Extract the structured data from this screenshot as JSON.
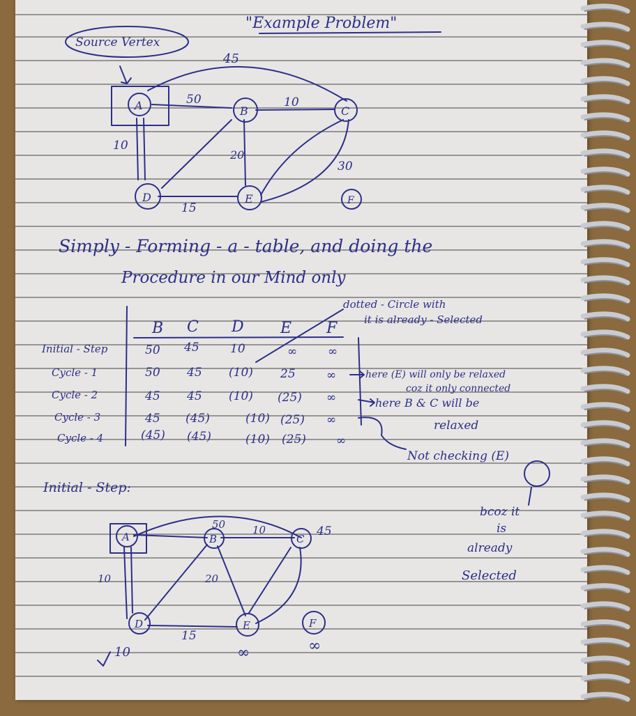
{
  "header": {
    "source_vertex_label": "Source Vertex",
    "title": "\"Example Problem\""
  },
  "graph1": {
    "nodes": [
      "A",
      "B",
      "C",
      "D",
      "E",
      "F"
    ],
    "edge_labels": {
      "ac": "45",
      "ab": "50",
      "bc": "10",
      "ad": "10",
      "be": "20",
      "ce": "30",
      "de": "15"
    }
  },
  "note": {
    "line1": "Simply - Forming - a - table, and doing the",
    "line2": "Procedure in our Mind only"
  },
  "annotation_dotted": {
    "line1": "dotted - Circle with",
    "line2": "it is already - Selected"
  },
  "table": {
    "columns": [
      "B",
      "C",
      "D",
      "E",
      "F"
    ],
    "rows": [
      {
        "label": "Initial - Step",
        "values": [
          "50",
          "45",
          "10",
          "∞",
          "∞"
        ]
      },
      {
        "label": "Cycle - 1",
        "values": [
          "50",
          "45",
          "(10)",
          "25",
          "∞"
        ]
      },
      {
        "label": "Cycle - 2",
        "values": [
          "45",
          "45",
          "(10)",
          "(25)",
          "∞"
        ]
      },
      {
        "label": "Cycle - 3",
        "values": [
          "45",
          "(45)",
          "(10)",
          "(25)",
          "∞"
        ]
      },
      {
        "label": "Cycle - 4",
        "values": [
          "(45)",
          "(45)",
          "(10)",
          "(25)",
          "∞"
        ]
      }
    ]
  },
  "side_notes": {
    "relax_e_1": "here (E) will only be relaxed",
    "relax_e_2": "coz it only connected",
    "relax_bc_1": "here B & C will be",
    "relax_bc_2": "relaxed",
    "not_checking": "Not checking (E)",
    "becoz_1": "bcoz it",
    "becoz_2": "is",
    "becoz_3": "already",
    "becoz_4": "Selected"
  },
  "initial_step": {
    "label": "Initial - Step:",
    "nodes": [
      "A",
      "B",
      "C",
      "D",
      "E",
      "F"
    ],
    "edge_labels": {
      "ab": "50",
      "bc": "10",
      "be": "20",
      "de": "15"
    },
    "distances": {
      "c": "45",
      "d": "10",
      "e": "∞",
      "f": "∞"
    }
  },
  "colors": {
    "ink": "#2b2f8a",
    "paper": "#e8e6e4",
    "desk": "#8a6a3e"
  }
}
